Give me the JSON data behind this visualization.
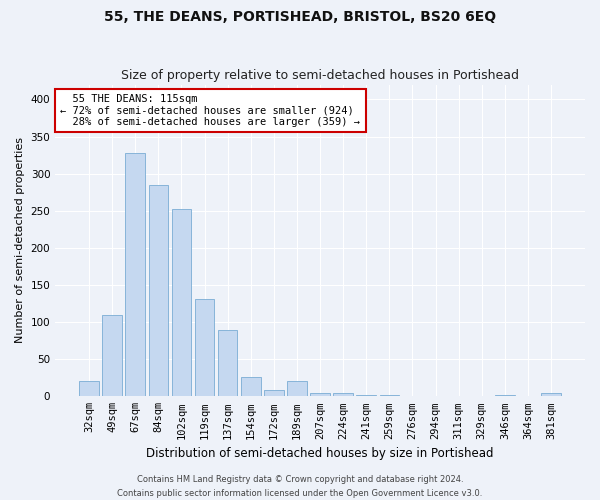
{
  "title": "55, THE DEANS, PORTISHEAD, BRISTOL, BS20 6EQ",
  "subtitle": "Size of property relative to semi-detached houses in Portishead",
  "xlabel": "Distribution of semi-detached houses by size in Portishead",
  "ylabel": "Number of semi-detached properties",
  "bins": [
    "32sqm",
    "49sqm",
    "67sqm",
    "84sqm",
    "102sqm",
    "119sqm",
    "137sqm",
    "154sqm",
    "172sqm",
    "189sqm",
    "207sqm",
    "224sqm",
    "241sqm",
    "259sqm",
    "276sqm",
    "294sqm",
    "311sqm",
    "329sqm",
    "346sqm",
    "364sqm",
    "381sqm"
  ],
  "values": [
    21,
    110,
    328,
    285,
    252,
    131,
    90,
    26,
    9,
    20,
    5,
    4,
    2,
    2,
    1,
    0,
    1,
    0,
    2,
    0,
    4
  ],
  "bar_color": "#c5d8f0",
  "bar_edge_color": "#7aadd4",
  "annotation_text": "  55 THE DEANS: 115sqm\n← 72% of semi-detached houses are smaller (924)\n  28% of semi-detached houses are larger (359) →",
  "annotation_box_facecolor": "#ffffff",
  "annotation_box_edgecolor": "#cc0000",
  "footer_line1": "Contains HM Land Registry data © Crown copyright and database right 2024.",
  "footer_line2": "Contains public sector information licensed under the Open Government Licence v3.0.",
  "ylim": [
    0,
    420
  ],
  "yticks": [
    0,
    50,
    100,
    150,
    200,
    250,
    300,
    350,
    400
  ],
  "background_color": "#eef2f9",
  "plot_bg_color": "#eef2f9",
  "grid_color": "#ffffff",
  "title_fontsize": 10,
  "subtitle_fontsize": 9,
  "tick_fontsize": 7.5,
  "ylabel_fontsize": 8,
  "xlabel_fontsize": 8.5,
  "annot_fontsize": 7.5,
  "footer_fontsize": 6
}
